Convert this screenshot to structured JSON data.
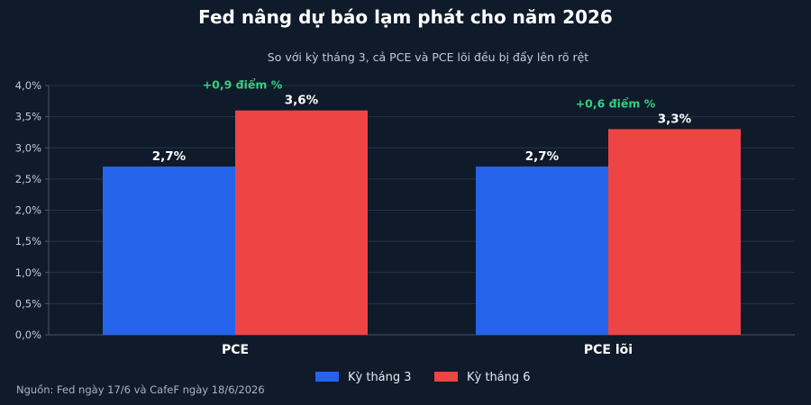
{
  "chart_data": {
    "type": "bar",
    "title": "Fed nâng dự báo lạm phát cho năm 2026",
    "subtitle": "So với kỳ tháng 3, cả PCE và PCE lõi đều bị đẩy lên rõ rệt",
    "categories": [
      "PCE",
      "PCE lõi"
    ],
    "series": [
      {
        "name": "Kỳ tháng 3",
        "color": "#2563eb",
        "values": [
          2.7,
          2.7
        ],
        "labels": [
          "2,7%",
          "2,7%"
        ]
      },
      {
        "name": "Kỳ tháng 6",
        "color": "#ef4444",
        "values": [
          3.6,
          3.3
        ],
        "labels": [
          "3,6%",
          "3,3%"
        ]
      }
    ],
    "annotations": [
      "+0,9 điểm %",
      "+0,6 điểm %"
    ],
    "annotation_color": "#35d07f",
    "ylim": [
      0,
      4.0
    ],
    "yticks": [
      0,
      0.5,
      1.0,
      1.5,
      2.0,
      2.5,
      3.0,
      3.5,
      4.0
    ],
    "ytick_labels": [
      "0,0%",
      "0,5%",
      "1,0%",
      "1,5%",
      "2,0%",
      "2,5%",
      "3,0%",
      "3,5%",
      "4,0%"
    ],
    "grid": true,
    "legend_position": "bottom-center",
    "source": "Nguồn: Fed ngày 17/6 và CafeF ngày 18/6/2026"
  }
}
